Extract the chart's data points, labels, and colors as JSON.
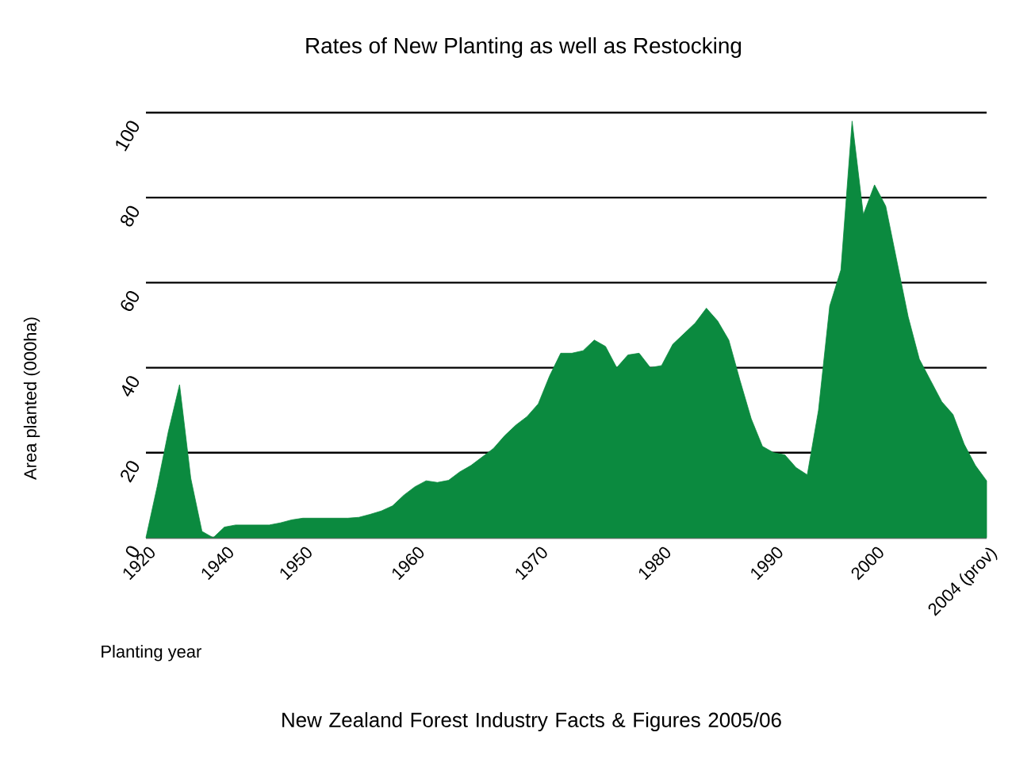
{
  "chart_data": {
    "type": "area",
    "title": "Rates of New Planting as well as Restocking",
    "xlabel": "Planting year",
    "ylabel": "Area planted (000ha)",
    "annotations": [
      "New Zealand Forest Industry Facts & Figures 2005/06"
    ],
    "categories": [
      "1920",
      null,
      null,
      null,
      null,
      null,
      null,
      "1940",
      null,
      null,
      null,
      null,
      null,
      null,
      "1950",
      null,
      null,
      null,
      null,
      null,
      null,
      null,
      null,
      null,
      "1960",
      null,
      null,
      null,
      null,
      null,
      null,
      null,
      null,
      null,
      null,
      "1970",
      null,
      null,
      null,
      null,
      null,
      null,
      null,
      null,
      null,
      null,
      "1980",
      null,
      null,
      null,
      null,
      null,
      null,
      null,
      null,
      null,
      "1990",
      null,
      null,
      null,
      null,
      null,
      null,
      null,
      null,
      "2000",
      null,
      null,
      null,
      null,
      null,
      null,
      null,
      null,
      null,
      "2004 (prov)"
    ],
    "values": [
      0,
      12,
      25,
      36,
      14,
      1.5,
      0,
      2.5,
      3,
      3,
      3,
      3,
      3.5,
      4.2,
      4.6,
      4.6,
      4.6,
      4.6,
      4.6,
      4.8,
      5.5,
      6.3,
      7.5,
      10,
      12,
      13.4,
      13,
      13.5,
      15.5,
      17,
      19,
      21,
      24,
      26.5,
      28.5,
      31.5,
      38,
      43.4,
      43.4,
      44,
      46.5,
      45,
      40,
      43,
      43.4,
      40,
      40.5,
      45.5,
      48,
      50.5,
      54,
      51,
      46.5,
      37,
      28,
      21.5,
      20,
      19.5,
      16.5,
      14.8,
      30,
      54.5,
      63,
      98,
      76,
      83,
      78,
      65,
      52,
      42,
      37,
      32,
      29,
      22,
      17,
      13.4
    ],
    "color": "#0b8a3f",
    "ylim": [
      0,
      100
    ],
    "yticks": [
      0,
      20,
      40,
      60,
      80,
      100
    ],
    "grid": "y"
  }
}
